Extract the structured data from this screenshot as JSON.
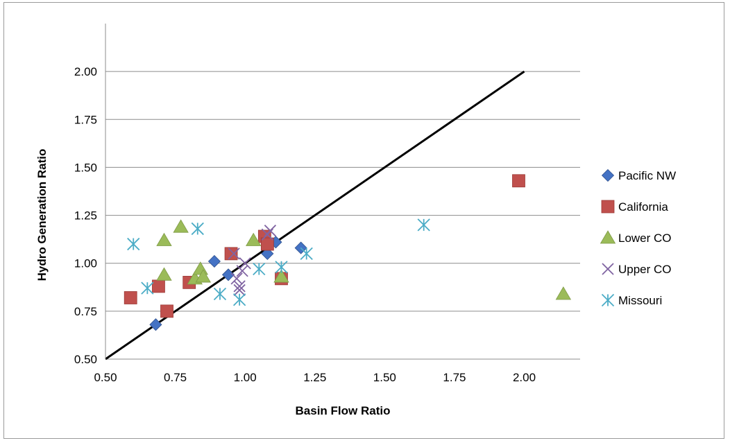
{
  "chart_data": {
    "type": "scatter",
    "title": "",
    "xlabel": "Basin Flow Ratio",
    "ylabel": "Hydro Generation Ratio",
    "xlim": [
      0.5,
      2.2
    ],
    "ylim": [
      0.5,
      2.25
    ],
    "x_ticks": [
      "0.50",
      "0.75",
      "1.00",
      "1.25",
      "1.50",
      "1.75",
      "2.00"
    ],
    "y_ticks": [
      "0.50",
      "0.75",
      "1.00",
      "1.25",
      "1.50",
      "1.75",
      "2.00"
    ],
    "grid": "horizontal",
    "legend_position": "right",
    "reference_line": {
      "x": [
        0.5,
        2.0
      ],
      "y": [
        0.5,
        2.0
      ],
      "color": "#000000"
    },
    "series": [
      {
        "name": "Pacific NW",
        "marker": "diamond",
        "color": "#4472C4",
        "points": [
          [
            0.68,
            0.68
          ],
          [
            0.89,
            1.01
          ],
          [
            0.94,
            0.94
          ],
          [
            1.08,
            1.05
          ],
          [
            1.11,
            1.11
          ],
          [
            1.2,
            1.08
          ]
        ]
      },
      {
        "name": "California",
        "marker": "square",
        "color": "#C0504D",
        "points": [
          [
            0.59,
            0.82
          ],
          [
            0.69,
            0.88
          ],
          [
            0.72,
            0.75
          ],
          [
            0.8,
            0.9
          ],
          [
            0.95,
            1.05
          ],
          [
            1.07,
            1.14
          ],
          [
            1.08,
            1.1
          ],
          [
            1.13,
            0.92
          ],
          [
            1.98,
            1.43
          ]
        ]
      },
      {
        "name": "Lower CO",
        "marker": "triangle",
        "color": "#9BBB59",
        "points": [
          [
            0.71,
            1.12
          ],
          [
            0.71,
            0.94
          ],
          [
            0.77,
            1.19
          ],
          [
            0.82,
            0.92
          ],
          [
            0.84,
            0.97
          ],
          [
            0.85,
            0.93
          ],
          [
            1.03,
            1.12
          ],
          [
            1.13,
            0.93
          ],
          [
            2.14,
            0.84
          ]
        ]
      },
      {
        "name": "Upper CO",
        "marker": "x",
        "color": "#8064A2",
        "points": [
          [
            0.96,
            1.05
          ],
          [
            0.97,
            0.92
          ],
          [
            0.98,
            0.88
          ],
          [
            0.98,
            0.86
          ],
          [
            0.99,
            0.96
          ],
          [
            1.0,
            1.0
          ],
          [
            1.08,
            1.15
          ],
          [
            1.09,
            1.17
          ]
        ]
      },
      {
        "name": "Missouri",
        "marker": "asterisk",
        "color": "#4BACC6",
        "points": [
          [
            0.6,
            1.1
          ],
          [
            0.65,
            0.87
          ],
          [
            0.83,
            1.18
          ],
          [
            0.91,
            0.84
          ],
          [
            0.98,
            0.81
          ],
          [
            1.05,
            0.97
          ],
          [
            1.13,
            0.98
          ],
          [
            1.22,
            1.05
          ],
          [
            1.64,
            1.2
          ]
        ]
      }
    ]
  }
}
